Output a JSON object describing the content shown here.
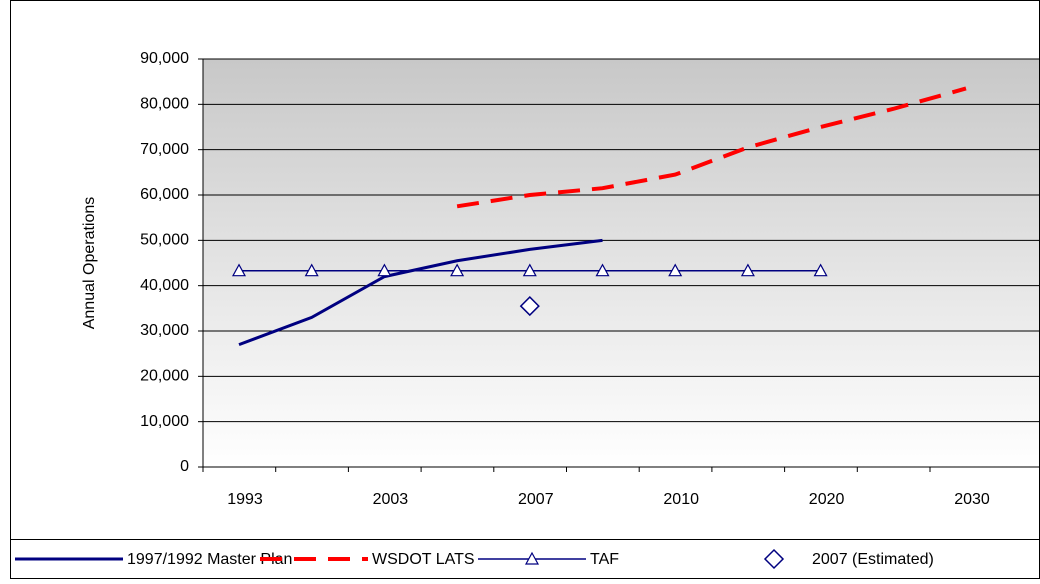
{
  "chart_data": {
    "type": "line",
    "y_label": "Annual Operations",
    "categories": [
      "1993",
      null,
      "2003",
      null,
      "2007",
      null,
      "2010",
      null,
      "2020",
      null,
      "2030"
    ],
    "series": [
      {
        "name": "1997/1992 Master Plan",
        "color": "#000080",
        "style": "solid",
        "marker": "none",
        "values": [
          27000,
          33000,
          42000,
          45500,
          48000,
          50000,
          null,
          null,
          null,
          null,
          null
        ]
      },
      {
        "name": "WSDOT LATS",
        "color": "#ff0000",
        "style": "dashed",
        "marker": "none",
        "values": [
          null,
          null,
          null,
          57500,
          60000,
          61500,
          64500,
          70500,
          75000,
          79000,
          83500
        ]
      },
      {
        "name": "TAF",
        "color": "#000080",
        "style": "thin",
        "marker": "triangle",
        "values": [
          43300,
          43300,
          43300,
          43300,
          43300,
          43300,
          43300,
          43300,
          43300,
          null,
          null
        ]
      },
      {
        "name": "2007 (Estimated)",
        "color": "#000080",
        "style": "none",
        "marker": "diamond",
        "values": [
          null,
          null,
          null,
          null,
          35500,
          null,
          null,
          null,
          null,
          null,
          null
        ]
      }
    ],
    "ylim": [
      0,
      90000
    ],
    "yticks": [
      0,
      {
        "value": 10000,
        "label": "10,000"
      },
      {
        "value": 20000,
        "label": "20,000"
      },
      {
        "value": 30000,
        "label": "30,000"
      },
      {
        "value": 40000,
        "label": "40,000"
      },
      {
        "value": 50000,
        "label": "50,000"
      },
      {
        "value": 60000,
        "label": "60,000"
      },
      {
        "value": 70000,
        "label": "70,000"
      },
      {
        "value": 80000,
        "label": "80,000"
      },
      {
        "value": 90000,
        "label": "90,000"
      }
    ],
    "grid": true,
    "legend": "bottom"
  }
}
